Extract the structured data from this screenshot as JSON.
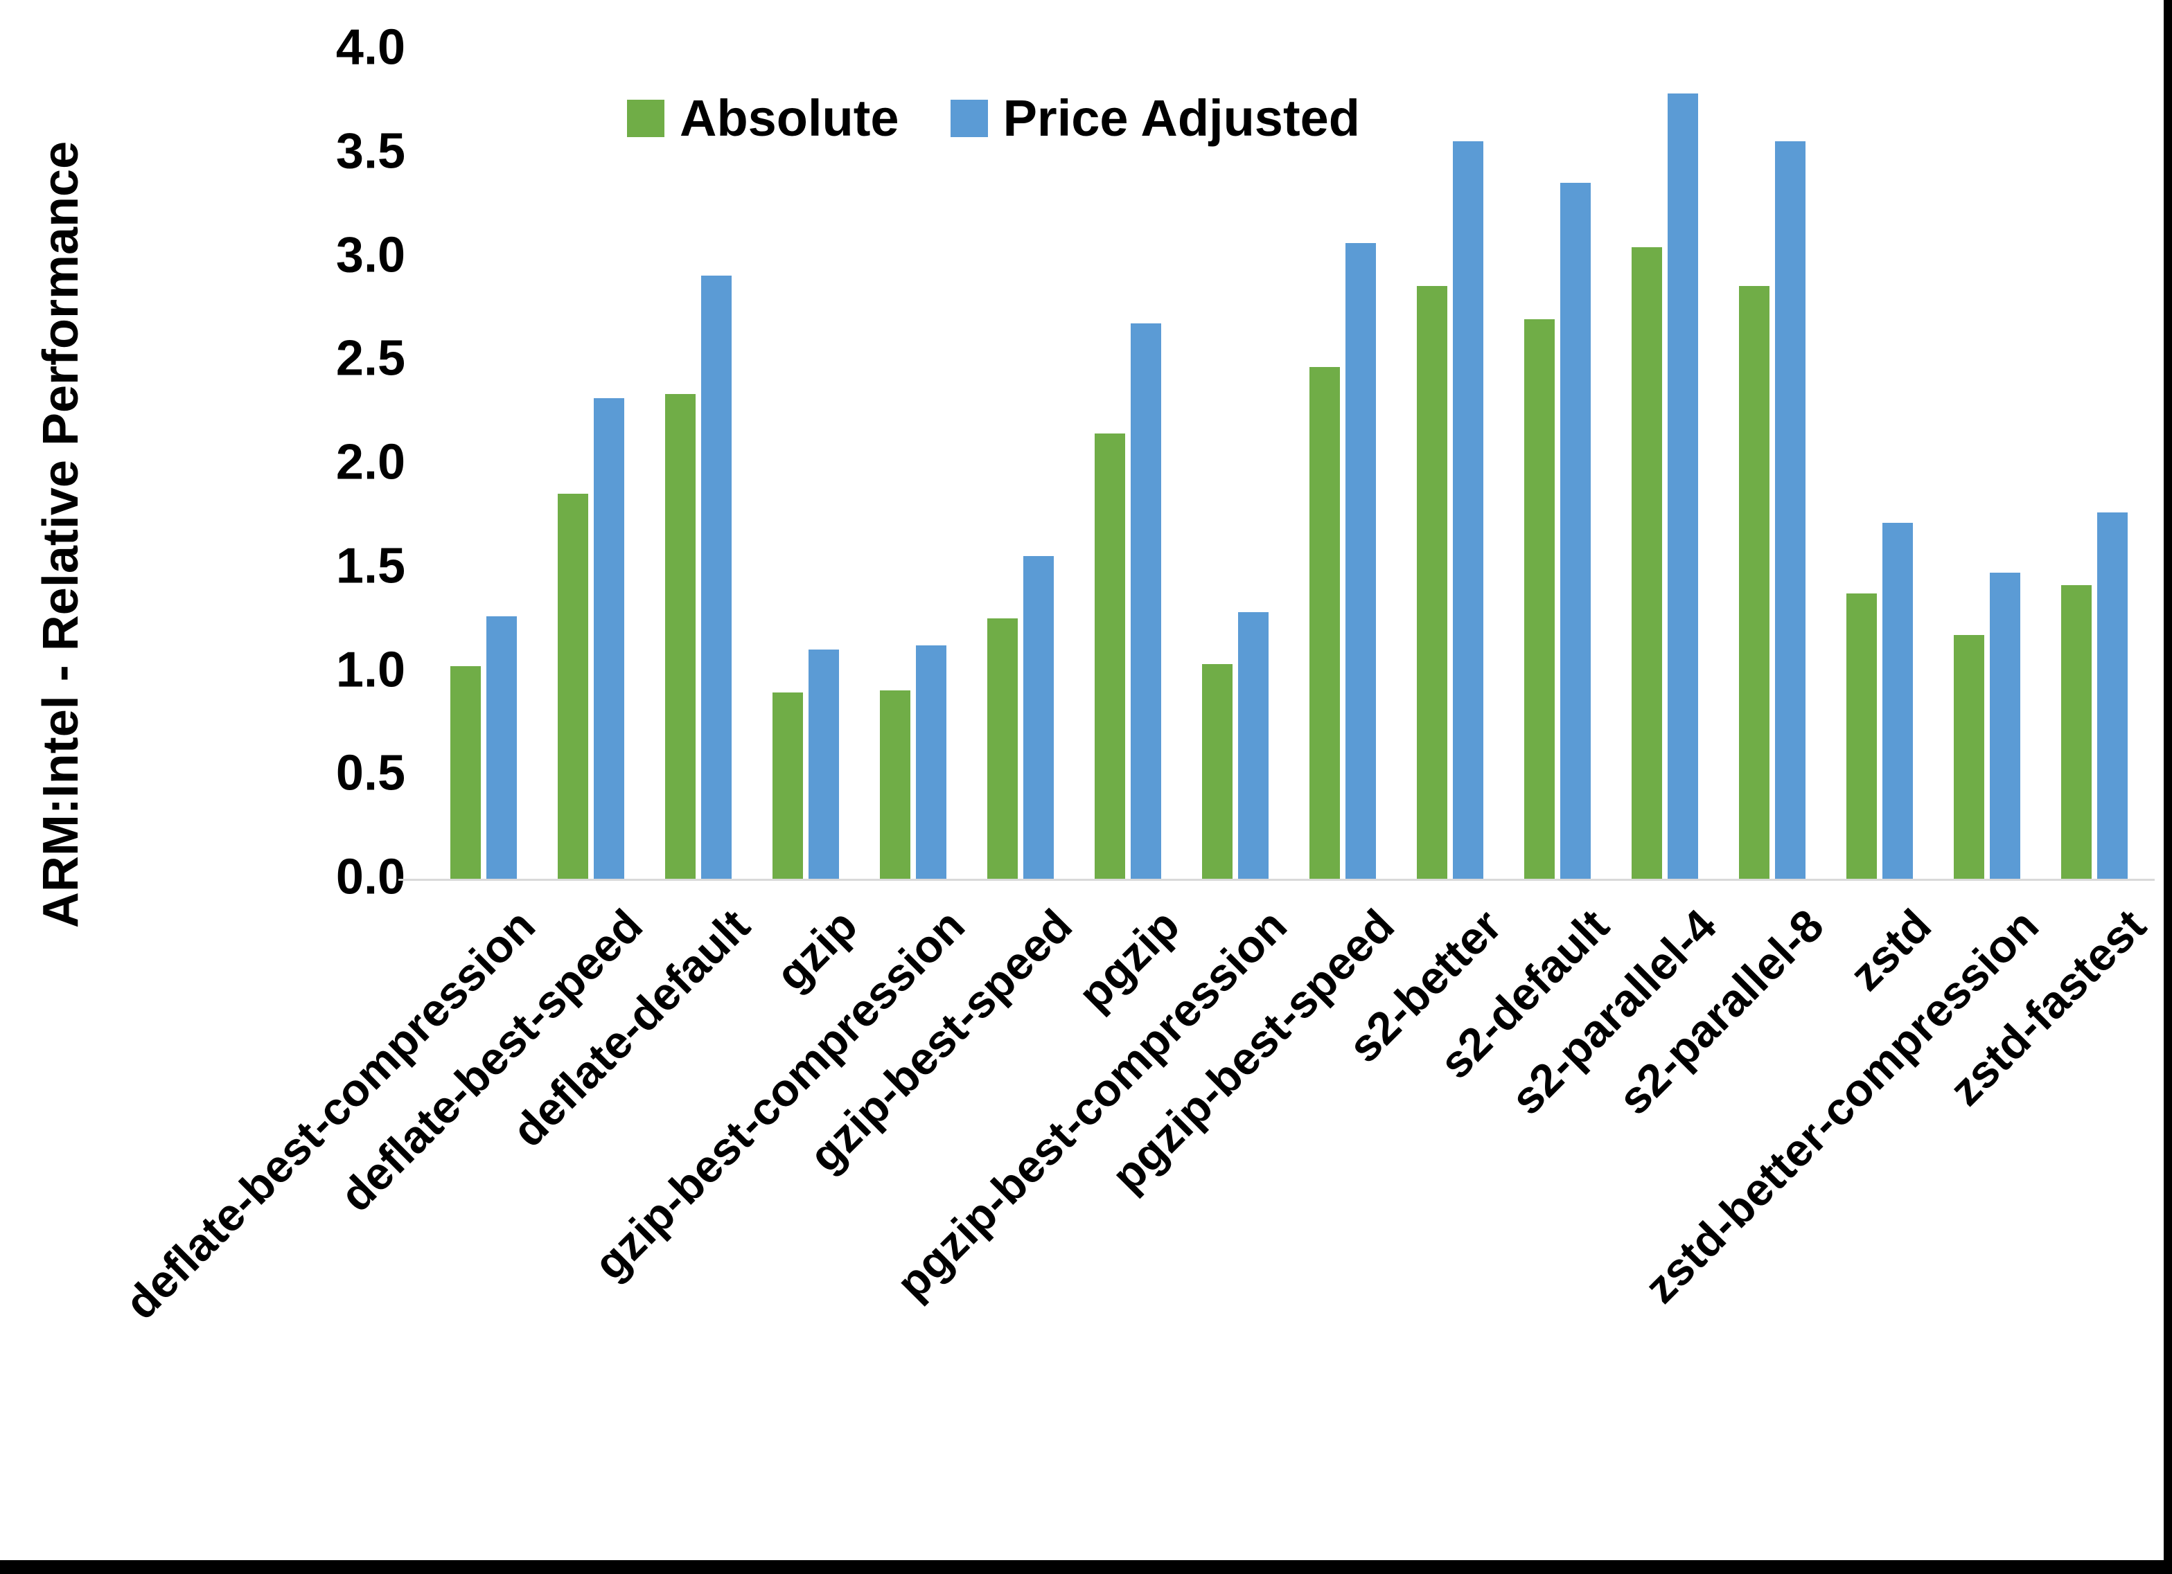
{
  "chart_data": {
    "type": "bar",
    "title": "",
    "xlabel": "",
    "ylabel": "ARM:Intel - Relative Performance",
    "ylim": [
      0,
      4
    ],
    "yticks": [
      "0.0",
      "0.5",
      "1.0",
      "1.5",
      "2.0",
      "2.5",
      "3.0",
      "3.5",
      "4.0"
    ],
    "grid": false,
    "legend_position": "top",
    "categories": [
      "deflate-best-compression",
      "deflate-best-speed",
      "deflate-default",
      "gzip",
      "gzip-best-compression",
      "gzip-best-speed",
      "pgzip",
      "pgzip-best-compression",
      "pgzip-best-speed",
      "s2-better",
      "s2-default",
      "s2-parallel-4",
      "s2-parallel-8",
      "zstd",
      "zstd-better-compression",
      "zstd-fastest"
    ],
    "series": [
      {
        "name": "Absolute",
        "color": "#70AD47",
        "values": [
          1.03,
          1.86,
          2.34,
          0.9,
          0.91,
          1.26,
          2.15,
          1.04,
          2.47,
          2.86,
          2.7,
          3.05,
          2.86,
          1.38,
          1.18,
          1.42
        ]
      },
      {
        "name": "Price Adjusted",
        "color": "#5B9BD5",
        "values": [
          1.27,
          2.32,
          2.91,
          1.11,
          1.13,
          1.56,
          2.68,
          1.29,
          3.07,
          3.56,
          3.36,
          3.79,
          3.56,
          1.72,
          1.48,
          1.77
        ]
      }
    ],
    "axis_line_color": "#D9D9D9",
    "background_color": "#FFFFFF",
    "border_color": "#000000"
  }
}
